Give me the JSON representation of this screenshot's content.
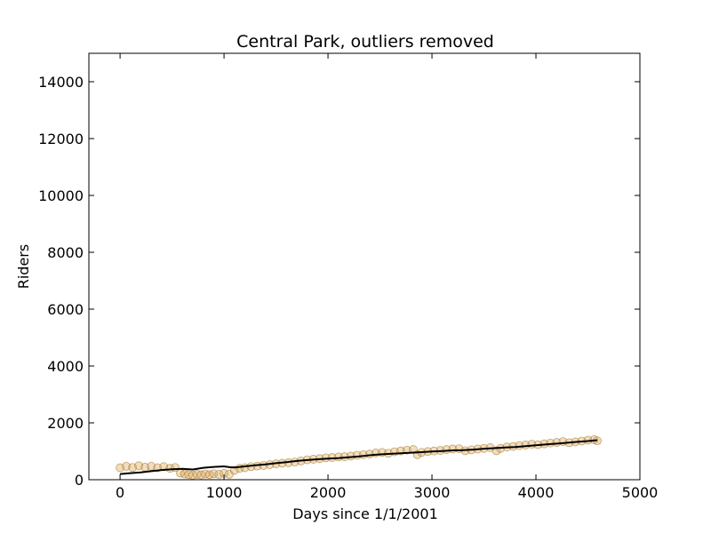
{
  "chart_data": {
    "type": "scatter",
    "title": "Central Park, outliers removed",
    "xlabel": "Days since 1/1/2001",
    "ylabel": "Riders",
    "xlim": [
      -300,
      5000
    ],
    "ylim": [
      0,
      15000
    ],
    "xticks": [
      0,
      1000,
      2000,
      3000,
      4000,
      5000
    ],
    "yticks": [
      0,
      2000,
      4000,
      6000,
      8000,
      10000,
      12000,
      14000
    ],
    "grid": false,
    "colors": {
      "points_fill": "#d4a052",
      "points_edge": "#9a6200",
      "trend": "#000000"
    },
    "series": [
      {
        "kind": "scatter",
        "points": [
          [
            0,
            420
          ],
          [
            60,
            470
          ],
          [
            120,
            430
          ],
          [
            180,
            490
          ],
          [
            240,
            440
          ],
          [
            300,
            470
          ],
          [
            360,
            420
          ],
          [
            420,
            460
          ],
          [
            480,
            400
          ],
          [
            530,
            430
          ],
          [
            580,
            230
          ],
          [
            620,
            200
          ],
          [
            660,
            180
          ],
          [
            700,
            160
          ],
          [
            740,
            190
          ],
          [
            780,
            170
          ],
          [
            820,
            200
          ],
          [
            860,
            180
          ],
          [
            900,
            210
          ],
          [
            950,
            190
          ],
          [
            1000,
            220
          ],
          [
            1050,
            190
          ],
          [
            1100,
            330
          ],
          [
            1150,
            400
          ],
          [
            1200,
            420
          ],
          [
            1260,
            460
          ],
          [
            1320,
            480
          ],
          [
            1380,
            500
          ],
          [
            1440,
            530
          ],
          [
            1500,
            560
          ],
          [
            1560,
            580
          ],
          [
            1620,
            600
          ],
          [
            1680,
            620
          ],
          [
            1740,
            660
          ],
          [
            1800,
            700
          ],
          [
            1860,
            720
          ],
          [
            1920,
            740
          ],
          [
            1980,
            770
          ],
          [
            2040,
            780
          ],
          [
            2100,
            800
          ],
          [
            2160,
            810
          ],
          [
            2220,
            830
          ],
          [
            2280,
            860
          ],
          [
            2340,
            880
          ],
          [
            2400,
            900
          ],
          [
            2460,
            940
          ],
          [
            2520,
            960
          ],
          [
            2580,
            930
          ],
          [
            2640,
            980
          ],
          [
            2700,
            1010
          ],
          [
            2760,
            1040
          ],
          [
            2820,
            1060
          ],
          [
            2860,
            880
          ],
          [
            2900,
            960
          ],
          [
            2960,
            990
          ],
          [
            3020,
            1010
          ],
          [
            3080,
            1030
          ],
          [
            3140,
            1060
          ],
          [
            3200,
            1080
          ],
          [
            3260,
            1090
          ],
          [
            3320,
            1020
          ],
          [
            3380,
            1050
          ],
          [
            3440,
            1080
          ],
          [
            3500,
            1100
          ],
          [
            3560,
            1130
          ],
          [
            3620,
            1020
          ],
          [
            3660,
            1100
          ],
          [
            3720,
            1150
          ],
          [
            3780,
            1170
          ],
          [
            3840,
            1200
          ],
          [
            3900,
            1220
          ],
          [
            3960,
            1250
          ],
          [
            4020,
            1230
          ],
          [
            4080,
            1260
          ],
          [
            4140,
            1290
          ],
          [
            4200,
            1310
          ],
          [
            4260,
            1340
          ],
          [
            4320,
            1300
          ],
          [
            4380,
            1330
          ],
          [
            4440,
            1360
          ],
          [
            4500,
            1390
          ],
          [
            4560,
            1410
          ],
          [
            4590,
            1370
          ]
        ]
      },
      {
        "kind": "line",
        "points": [
          [
            0,
            200
          ],
          [
            100,
            230
          ],
          [
            200,
            260
          ],
          [
            300,
            300
          ],
          [
            400,
            340
          ],
          [
            500,
            370
          ],
          [
            600,
            380
          ],
          [
            700,
            360
          ],
          [
            800,
            420
          ],
          [
            900,
            450
          ],
          [
            1000,
            470
          ],
          [
            1050,
            440
          ],
          [
            1100,
            430
          ],
          [
            1200,
            470
          ],
          [
            1300,
            510
          ],
          [
            1400,
            540
          ],
          [
            1500,
            580
          ],
          [
            1600,
            620
          ],
          [
            1700,
            660
          ],
          [
            1800,
            690
          ],
          [
            1900,
            720
          ],
          [
            2000,
            740
          ],
          [
            2100,
            760
          ],
          [
            2200,
            790
          ],
          [
            2300,
            820
          ],
          [
            2400,
            860
          ],
          [
            2500,
            890
          ],
          [
            2600,
            910
          ],
          [
            2700,
            930
          ],
          [
            2800,
            950
          ],
          [
            2900,
            970
          ],
          [
            3000,
            990
          ],
          [
            3100,
            1010
          ],
          [
            3200,
            1030
          ],
          [
            3300,
            1040
          ],
          [
            3400,
            1060
          ],
          [
            3500,
            1090
          ],
          [
            3600,
            1110
          ],
          [
            3700,
            1130
          ],
          [
            3800,
            1150
          ],
          [
            3900,
            1180
          ],
          [
            4000,
            1210
          ],
          [
            4100,
            1240
          ],
          [
            4200,
            1270
          ],
          [
            4300,
            1300
          ],
          [
            4400,
            1330
          ],
          [
            4500,
            1360
          ],
          [
            4590,
            1390
          ]
        ]
      }
    ]
  }
}
